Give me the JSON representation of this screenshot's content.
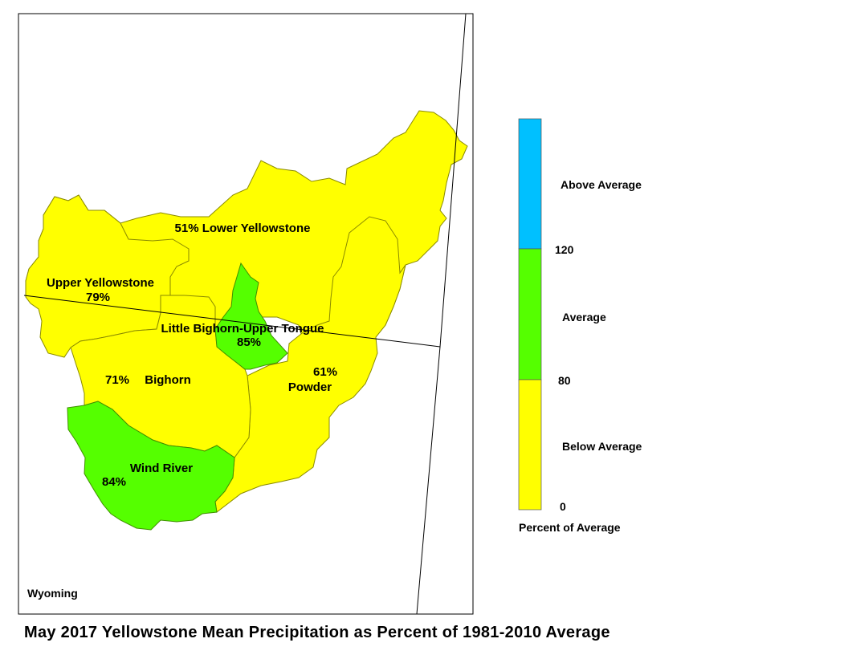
{
  "map": {
    "state_label": "Wyoming",
    "title": "May 2017 Yellowstone Mean Precipitation as Percent of 1981-2010 Average",
    "colors": {
      "below_average": "#ffff00",
      "average": "#55ff00",
      "above_average": "#00c0ff",
      "basin_outline": "#8a8a00",
      "state_border": "#000000"
    },
    "basins": [
      {
        "name": "Lower Yellowstone",
        "percent": "51%",
        "category": "below_average"
      },
      {
        "name": "Upper Yellowstone",
        "percent": "79%",
        "category": "below_average"
      },
      {
        "name": "Little Bighorn-Upper Tongue",
        "percent": "85%",
        "category": "average"
      },
      {
        "name": "Bighorn",
        "percent": "71%",
        "category": "below_average"
      },
      {
        "name": "Powder",
        "percent": "61%",
        "category": "below_average"
      },
      {
        "name": "Wind River",
        "percent": "84%",
        "category": "average"
      }
    ]
  },
  "legend": {
    "title": "Percent of Average",
    "categories": [
      {
        "label": "Above Average",
        "color": "#00c0ff"
      },
      {
        "label": "Average",
        "color": "#55ff00"
      },
      {
        "label": "Below Average",
        "color": "#ffff00"
      }
    ],
    "breaks": [
      "120",
      "80",
      "0"
    ]
  }
}
